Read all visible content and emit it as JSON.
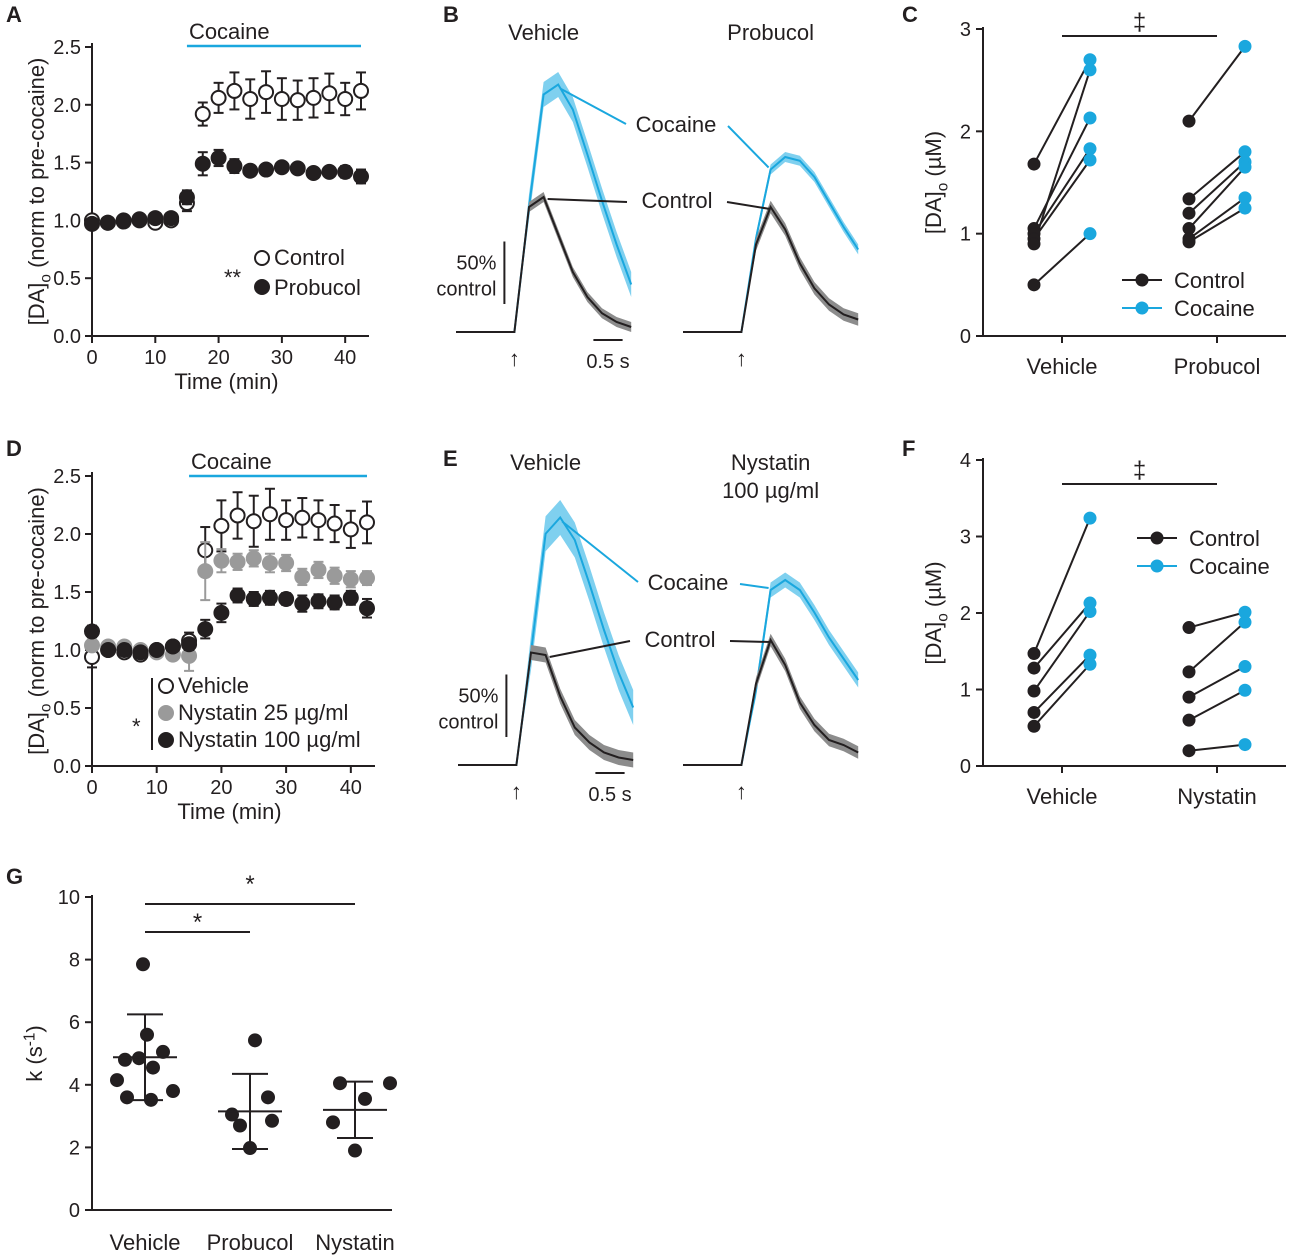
{
  "colors": {
    "black": "#231f20",
    "cyan": "#1aa7de",
    "cyan_band": "#7fd0ef",
    "gray": "#9a9a9a",
    "gray_band": "#8c8c8c"
  },
  "panels": {
    "A": "A",
    "B": "B",
    "C": "C",
    "D": "D",
    "E": "E",
    "F": "F",
    "G": "G"
  },
  "chart_data": [
    {
      "id": "A",
      "type": "scatter",
      "title": "",
      "bar_label": "Cocaine",
      "bar_x": [
        15,
        42.5
      ],
      "xlabel": "Time (min)",
      "ylabel": "[DA]o (norm to pre-cocaine)",
      "ylabel_main": "[DA]",
      "ylabel_sub": "o",
      "ylabel_tail": " (norm to pre-cocaine)",
      "xlim": [
        0,
        42.5
      ],
      "ylim": [
        0,
        2.5
      ],
      "xticks": [
        0,
        10,
        20,
        30,
        40
      ],
      "xtick_labels": [
        "0",
        "10",
        "20",
        "30",
        "40"
      ],
      "yticks": [
        0,
        0.5,
        1,
        1.5,
        2,
        2.5
      ],
      "ytick_labels": [
        "0.0",
        "0.5",
        "1.0",
        "1.5",
        "2.0",
        "2.5"
      ],
      "significance": "**",
      "series": [
        {
          "name": "Control",
          "style": "open",
          "x": [
            0,
            2.5,
            5,
            7.5,
            10,
            12.5,
            15,
            17.5,
            20,
            22.5,
            25,
            27.5,
            30,
            32.5,
            35,
            37.5,
            40,
            42.5
          ],
          "values": [
            1.0,
            0.98,
            1.0,
            1.0,
            0.98,
            1.0,
            1.15,
            1.92,
            2.06,
            2.12,
            2.05,
            2.11,
            2.05,
            2.04,
            2.06,
            2.1,
            2.05,
            2.12
          ],
          "err": [
            0.03,
            0.02,
            0.03,
            0.03,
            0.03,
            0.03,
            0.07,
            0.1,
            0.13,
            0.16,
            0.17,
            0.18,
            0.18,
            0.17,
            0.17,
            0.17,
            0.14,
            0.16
          ]
        },
        {
          "name": "Probucol",
          "style": "filled",
          "x": [
            0,
            2.5,
            5,
            7.5,
            10,
            12.5,
            15,
            17.5,
            20,
            22.5,
            25,
            27.5,
            30,
            32.5,
            35,
            37.5,
            40,
            42.5
          ],
          "values": [
            0.97,
            0.98,
            0.99,
            1.01,
            1.02,
            1.02,
            1.2,
            1.49,
            1.54,
            1.47,
            1.43,
            1.44,
            1.46,
            1.45,
            1.41,
            1.42,
            1.42,
            1.38
          ],
          "err": [
            0.03,
            0.03,
            0.03,
            0.03,
            0.03,
            0.03,
            0.06,
            0.1,
            0.07,
            0.06,
            0.04,
            0.03,
            0.04,
            0.04,
            0.04,
            0.04,
            0.05,
            0.06
          ]
        }
      ]
    },
    {
      "id": "B",
      "type": "line",
      "left_title": "Vehicle",
      "right_title": "Probucol",
      "label_cocaine": "Cocaine",
      "label_control": "Control",
      "scale_y": "50%",
      "scale_y2": "control",
      "scale_x": "0.5 s",
      "stim_marker": "↑",
      "unit": "% control (peak control = 100)",
      "left": {
        "cocaine": [
          0,
          0,
          0,
          0,
          0,
          100,
          190,
          198,
          178,
          142,
          105,
          70,
          38
        ],
        "control": [
          0,
          0,
          0,
          0,
          0,
          100,
          108,
          78,
          48,
          28,
          15,
          8,
          4
        ],
        "cocaine_sd": 10,
        "control_sd": 4
      },
      "right": {
        "cocaine": [
          0,
          0,
          0,
          0,
          0,
          75,
          130,
          140,
          137,
          124,
          104,
          84,
          66
        ],
        "control": [
          0,
          0,
          0,
          0,
          0,
          70,
          100,
          82,
          55,
          35,
          22,
          14,
          10
        ],
        "cocaine_sd": 4,
        "control_sd": 5
      }
    },
    {
      "id": "C",
      "type": "scatter",
      "ylabel_main": "[DA]",
      "ylabel_sub": "o",
      "ylabel_tail": " (µM)",
      "ylim": [
        0,
        3
      ],
      "yticks": [
        0,
        1,
        2,
        3
      ],
      "ytick_labels": [
        "0",
        "1",
        "2",
        "3"
      ],
      "categories": [
        "Vehicle",
        "Probucol"
      ],
      "significance": "‡",
      "legend": [
        "Control",
        "Cocaine"
      ],
      "pairs": {
        "Vehicle": {
          "control": [
            1.68,
            1.05,
            1.0,
            0.95,
            0.9,
            0.5
          ],
          "cocaine": [
            2.7,
            2.13,
            1.83,
            1.72,
            2.6,
            1.0
          ]
        },
        "Probucol": {
          "control": [
            2.1,
            1.34,
            1.2,
            1.05,
            0.95,
            0.92
          ],
          "cocaine": [
            2.83,
            1.8,
            1.7,
            1.65,
            1.35,
            1.25
          ]
        }
      }
    },
    {
      "id": "D",
      "type": "scatter",
      "bar_label": "Cocaine",
      "bar_x": [
        15,
        42.5
      ],
      "xlabel": "Time (min)",
      "ylabel_main": "[DA]",
      "ylabel_sub": "o",
      "ylabel_tail": " (norm to pre-cocaine)",
      "xlim": [
        0,
        42.5
      ],
      "ylim": [
        0,
        2.5
      ],
      "xticks": [
        0,
        10,
        20,
        30,
        40
      ],
      "xtick_labels": [
        "0",
        "10",
        "20",
        "30",
        "40"
      ],
      "yticks": [
        0,
        0.5,
        1,
        1.5,
        2,
        2.5
      ],
      "ytick_labels": [
        "0.0",
        "0.5",
        "1.0",
        "1.5",
        "2.0",
        "2.5"
      ],
      "significance": "*",
      "series": [
        {
          "name": "Vehicle",
          "style": "open",
          "x": [
            0,
            2.5,
            5,
            7.5,
            10,
            12.5,
            15,
            17.5,
            20,
            22.5,
            25,
            27.5,
            30,
            32.5,
            35,
            37.5,
            40,
            42.5
          ],
          "values": [
            0.94,
            1.0,
            0.98,
            0.96,
            1.0,
            1.03,
            1.08,
            1.86,
            2.07,
            2.16,
            2.11,
            2.17,
            2.12,
            2.14,
            2.12,
            2.09,
            2.04,
            2.1
          ],
          "err": [
            0.09,
            0.03,
            0.03,
            0.03,
            0.03,
            0.04,
            0.07,
            0.2,
            0.22,
            0.2,
            0.22,
            0.22,
            0.17,
            0.17,
            0.17,
            0.16,
            0.16,
            0.18
          ]
        },
        {
          "name": "Nystatin 25 µg/ml",
          "style": "gray",
          "x": [
            0,
            2.5,
            5,
            7.5,
            10,
            12.5,
            15,
            17.5,
            20,
            22.5,
            25,
            27.5,
            30,
            32.5,
            35,
            37.5,
            40,
            42.5
          ],
          "values": [
            1.04,
            1.03,
            1.03,
            1.0,
            0.98,
            0.96,
            0.95,
            1.68,
            1.77,
            1.76,
            1.79,
            1.75,
            1.75,
            1.63,
            1.69,
            1.64,
            1.61,
            1.62
          ],
          "err": [
            0.04,
            0.03,
            0.03,
            0.03,
            0.03,
            0.03,
            0.13,
            0.25,
            0.1,
            0.07,
            0.07,
            0.08,
            0.07,
            0.07,
            0.07,
            0.07,
            0.07,
            0.06
          ]
        },
        {
          "name": "Nystatin 100 µg/ml",
          "style": "filled",
          "x": [
            0,
            2.5,
            5,
            7.5,
            10,
            12.5,
            15,
            17.5,
            20,
            22.5,
            25,
            27.5,
            30,
            32.5,
            35,
            37.5,
            40,
            42.5
          ],
          "values": [
            1.16,
            1.0,
            1.0,
            0.98,
            1.0,
            1.03,
            1.05,
            1.18,
            1.32,
            1.47,
            1.44,
            1.45,
            1.44,
            1.4,
            1.42,
            1.41,
            1.45,
            1.36
          ],
          "err": [
            0.05,
            0.03,
            0.03,
            0.03,
            0.03,
            0.03,
            0.05,
            0.08,
            0.08,
            0.06,
            0.06,
            0.06,
            0.05,
            0.07,
            0.06,
            0.06,
            0.06,
            0.08
          ]
        }
      ]
    },
    {
      "id": "E",
      "type": "line",
      "left_title": "Vehicle",
      "right_title": "Nystatin",
      "right_title2": "100 µg/ml",
      "label_cocaine": "Cocaine",
      "label_control": "Control",
      "scale_y": "50%",
      "scale_y2": "control",
      "scale_x": "0.5 s",
      "stim_marker": "↑",
      "unit": "% control (peak control = 100)",
      "left": {
        "cocaine": [
          0,
          0,
          0,
          0,
          0,
          90,
          185,
          198,
          180,
          145,
          108,
          74,
          46
        ],
        "control": [
          0,
          0,
          0,
          0,
          0,
          90,
          88,
          55,
          30,
          18,
          10,
          6,
          4
        ],
        "cocaine_sd": 14,
        "control_sd": 6
      },
      "right": {
        "cocaine": [
          0,
          0,
          0,
          0,
          0,
          60,
          140,
          148,
          140,
          122,
          102,
          85,
          68
        ],
        "control": [
          0,
          0,
          0,
          0,
          0,
          65,
          100,
          80,
          50,
          32,
          20,
          16,
          10
        ],
        "cocaine_sd": 6,
        "control_sd": 5
      }
    },
    {
      "id": "F",
      "type": "scatter",
      "ylabel_main": "[DA]",
      "ylabel_sub": "o",
      "ylabel_tail": " (µM)",
      "ylim": [
        0,
        4
      ],
      "yticks": [
        0,
        1,
        2,
        3,
        4
      ],
      "ytick_labels": [
        "0",
        "1",
        "2",
        "3",
        "4"
      ],
      "categories": [
        "Vehicle",
        "Nystatin"
      ],
      "significance": "‡",
      "legend": [
        "Control",
        "Cocaine"
      ],
      "pairs": {
        "Vehicle": {
          "control": [
            1.47,
            1.28,
            0.98,
            0.7,
            0.52
          ],
          "cocaine": [
            3.24,
            2.13,
            2.02,
            1.45,
            1.33
          ]
        },
        "Nystatin": {
          "control": [
            1.81,
            1.23,
            0.9,
            0.6,
            0.2
          ],
          "cocaine": [
            2.01,
            1.88,
            1.3,
            0.99,
            0.28
          ]
        }
      }
    },
    {
      "id": "G",
      "type": "scatter",
      "ylabel_main": "k (s",
      "ylabel_sup": "-1",
      "ylabel_tail": ")",
      "ylim": [
        0,
        10
      ],
      "yticks": [
        0,
        2,
        4,
        6,
        8,
        10
      ],
      "ytick_labels": [
        "0",
        "2",
        "4",
        "6",
        "8",
        "10"
      ],
      "categories": [
        "Vehicle",
        "Probucol",
        "Nystatin"
      ],
      "significance": [
        "*",
        "*"
      ],
      "groups": [
        {
          "name": "Vehicle",
          "mean": 4.88,
          "sd": 1.37,
          "points": [
            7.85,
            5.6,
            5.05,
            4.8,
            4.55,
            4.15,
            4.85,
            3.8,
            3.6,
            3.52
          ]
        },
        {
          "name": "Probucol",
          "mean": 3.15,
          "sd": 1.2,
          "points": [
            5.42,
            3.6,
            3.05,
            2.85,
            2.7,
            1.98
          ]
        },
        {
          "name": "Nystatin",
          "mean": 3.2,
          "sd": 0.9,
          "points": [
            4.05,
            4.05,
            3.55,
            2.8,
            1.9
          ]
        }
      ]
    }
  ]
}
